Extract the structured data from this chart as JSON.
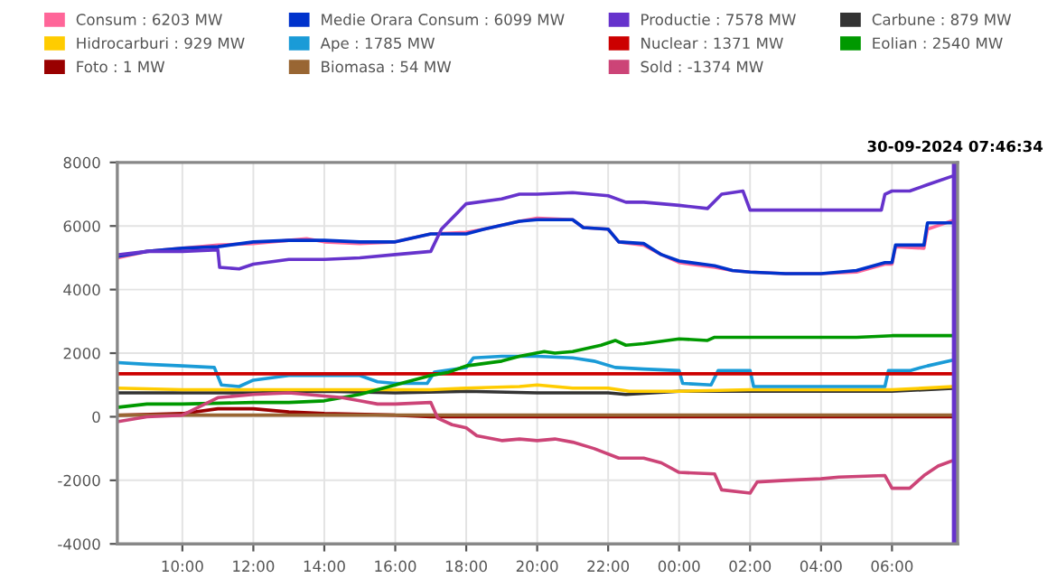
{
  "chart_data": {
    "type": "line",
    "xlim": [
      "2024-09-29T08:10",
      "2024-09-30T07:51"
    ],
    "xticks": [
      {
        "value": "2024-09-29T10:00",
        "label": "10:00"
      },
      {
        "value": "2024-09-29T12:00",
        "label": "12:00"
      },
      {
        "value": "2024-09-29T14:00",
        "label": "14:00"
      },
      {
        "value": "2024-09-29T16:00",
        "label": "16:00"
      },
      {
        "value": "2024-09-29T18:00",
        "label": "18:00"
      },
      {
        "value": "2024-09-29T20:00",
        "label": "20:00"
      },
      {
        "value": "2024-09-29T22:00",
        "label": "22:00"
      },
      {
        "value": "2024-09-30T00:00",
        "label": "00:00"
      },
      {
        "value": "2024-09-30T02:00",
        "label": "02:00"
      },
      {
        "value": "2024-09-30T04:00",
        "label": "04:00"
      },
      {
        "value": "2024-09-30T06:00",
        "label": "06:00"
      }
    ],
    "ylim": [
      -4000,
      8000
    ],
    "yticks": [
      -4000,
      -2000,
      0,
      2000,
      4000,
      6000,
      8000
    ],
    "grid": true,
    "legend": "top",
    "marker": "none",
    "line_style": "solid",
    "ref_lines": [
      {
        "axis": "x",
        "value": "2024-09-30T07:46:34",
        "label": "30-09-2024 07:46:34",
        "color": "#6633cc"
      }
    ],
    "series": [
      {
        "name": "Consum : 6203 MW",
        "color": "#ff6699",
        "x": [
          "2024-09-29T08:12",
          "2024-09-29T09:00",
          "2024-09-29T10:00",
          "2024-09-29T11:00",
          "2024-09-29T12:00",
          "2024-09-29T13:00",
          "2024-09-29T13:30",
          "2024-09-29T14:00",
          "2024-09-29T15:00",
          "2024-09-29T16:00",
          "2024-09-29T17:00",
          "2024-09-29T18:00",
          "2024-09-29T18:30",
          "2024-09-29T19:30",
          "2024-09-29T20:00",
          "2024-09-29T21:00",
          "2024-09-29T21:18",
          "2024-09-29T22:00",
          "2024-09-29T22:18",
          "2024-09-29T23:00",
          "2024-09-29T23:30",
          "2024-09-30T00:00",
          "2024-09-30T01:00",
          "2024-09-30T01:30",
          "2024-09-30T02:00",
          "2024-09-30T03:00",
          "2024-09-30T04:00",
          "2024-09-30T05:00",
          "2024-09-30T05:48",
          "2024-09-30T06:00",
          "2024-09-30T06:06",
          "2024-09-30T06:54",
          "2024-09-30T07:00",
          "2024-09-30T07:47"
        ],
        "values": [
          5000,
          5200,
          5300,
          5400,
          5450,
          5550,
          5600,
          5500,
          5450,
          5500,
          5750,
          5800,
          5900,
          6150,
          6250,
          6200,
          5950,
          5900,
          5500,
          5400,
          5100,
          4850,
          4700,
          4600,
          4550,
          4500,
          4500,
          4550,
          4800,
          4800,
          5350,
          5300,
          5900,
          6200
        ]
      },
      {
        "name": "Medie Orara Consum : 6099 MW",
        "color": "#0033cc",
        "x": [
          "2024-09-29T08:12",
          "2024-09-29T09:00",
          "2024-09-29T10:00",
          "2024-09-29T11:00",
          "2024-09-29T12:00",
          "2024-09-29T13:00",
          "2024-09-29T14:00",
          "2024-09-29T15:00",
          "2024-09-29T16:00",
          "2024-09-29T17:00",
          "2024-09-29T18:00",
          "2024-09-29T18:30",
          "2024-09-29T19:30",
          "2024-09-29T20:00",
          "2024-09-29T21:00",
          "2024-09-29T21:18",
          "2024-09-29T22:00",
          "2024-09-29T22:18",
          "2024-09-29T23:00",
          "2024-09-29T23:30",
          "2024-09-30T00:00",
          "2024-09-30T01:00",
          "2024-09-30T01:30",
          "2024-09-30T02:00",
          "2024-09-30T03:00",
          "2024-09-30T04:00",
          "2024-09-30T05:00",
          "2024-09-30T05:48",
          "2024-09-30T06:00",
          "2024-09-30T06:06",
          "2024-09-30T06:54",
          "2024-09-30T07:00",
          "2024-09-30T07:47"
        ],
        "values": [
          5050,
          5200,
          5300,
          5350,
          5500,
          5550,
          5550,
          5500,
          5500,
          5750,
          5750,
          5900,
          6150,
          6200,
          6200,
          5950,
          5900,
          5500,
          5450,
          5100,
          4900,
          4750,
          4600,
          4550,
          4500,
          4500,
          4600,
          4850,
          4850,
          5400,
          5400,
          6100,
          6100
        ]
      },
      {
        "name": "Productie : 7578 MW",
        "color": "#6633cc",
        "x": [
          "2024-09-29T08:12",
          "2024-09-29T09:00",
          "2024-09-29T10:00",
          "2024-09-29T11:00",
          "2024-09-29T11:03",
          "2024-09-29T11:36",
          "2024-09-29T12:00",
          "2024-09-29T13:00",
          "2024-09-29T14:00",
          "2024-09-29T15:00",
          "2024-09-29T16:00",
          "2024-09-29T17:00",
          "2024-09-29T17:18",
          "2024-09-29T18:00",
          "2024-09-29T19:00",
          "2024-09-29T19:30",
          "2024-09-29T20:00",
          "2024-09-29T21:00",
          "2024-09-29T22:00",
          "2024-09-29T22:30",
          "2024-09-29T23:00",
          "2024-09-30T00:00",
          "2024-09-30T00:48",
          "2024-09-30T01:12",
          "2024-09-30T01:48",
          "2024-09-30T02:00",
          "2024-09-30T03:00",
          "2024-09-30T04:00",
          "2024-09-30T05:00",
          "2024-09-30T05:42",
          "2024-09-30T05:48",
          "2024-09-30T06:00",
          "2024-09-30T06:30",
          "2024-09-30T07:00",
          "2024-09-30T07:47"
        ],
        "values": [
          5100,
          5200,
          5200,
          5250,
          4700,
          4650,
          4800,
          4950,
          4950,
          5000,
          5100,
          5200,
          5900,
          6700,
          6850,
          7000,
          7000,
          7050,
          6950,
          6750,
          6750,
          6650,
          6550,
          7000,
          7100,
          6500,
          6500,
          6500,
          6500,
          6500,
          7000,
          7100,
          7100,
          7300,
          7600
        ]
      },
      {
        "name": "Carbune : 879 MW",
        "color": "#333333",
        "x": [
          "2024-09-29T08:12",
          "2024-09-29T10:00",
          "2024-09-29T12:00",
          "2024-09-29T14:00",
          "2024-09-29T16:00",
          "2024-09-29T18:00",
          "2024-09-29T20:00",
          "2024-09-29T22:00",
          "2024-09-29T22:30",
          "2024-09-30T00:00",
          "2024-09-30T02:00",
          "2024-09-30T04:00",
          "2024-09-30T06:00",
          "2024-09-30T07:47"
        ],
        "values": [
          750,
          750,
          750,
          800,
          750,
          800,
          750,
          750,
          700,
          800,
          800,
          800,
          800,
          900
        ]
      },
      {
        "name": "Hidrocarburi : 929 MW",
        "color": "#ffcc00",
        "x": [
          "2024-09-29T08:12",
          "2024-09-29T10:00",
          "2024-09-29T12:00",
          "2024-09-29T14:00",
          "2024-09-29T16:00",
          "2024-09-29T17:00",
          "2024-09-29T18:00",
          "2024-09-29T19:30",
          "2024-09-29T20:00",
          "2024-09-29T21:00",
          "2024-09-29T22:00",
          "2024-09-29T22:36",
          "2024-09-30T00:00",
          "2024-09-30T02:00",
          "2024-09-30T04:00",
          "2024-09-30T06:00",
          "2024-09-30T07:47"
        ],
        "values": [
          900,
          850,
          850,
          850,
          850,
          850,
          900,
          950,
          1000,
          900,
          900,
          800,
          800,
          850,
          850,
          850,
          950
        ]
      },
      {
        "name": "Ape : 1785 MW",
        "color": "#1a9bd7",
        "x": [
          "2024-09-29T08:12",
          "2024-09-29T09:00",
          "2024-09-29T10:00",
          "2024-09-29T10:54",
          "2024-09-29T11:06",
          "2024-09-29T11:36",
          "2024-09-29T12:00",
          "2024-09-29T13:00",
          "2024-09-29T14:00",
          "2024-09-29T15:00",
          "2024-09-29T15:30",
          "2024-09-29T16:00",
          "2024-09-29T16:54",
          "2024-09-29T17:06",
          "2024-09-29T18:00",
          "2024-09-29T18:12",
          "2024-09-29T19:00",
          "2024-09-29T20:00",
          "2024-09-29T21:00",
          "2024-09-29T21:36",
          "2024-09-29T22:12",
          "2024-09-29T23:00",
          "2024-09-30T00:00",
          "2024-09-30T00:06",
          "2024-09-30T00:54",
          "2024-09-30T01:06",
          "2024-09-30T02:00",
          "2024-09-30T02:06",
          "2024-09-30T03:00",
          "2024-09-30T05:00",
          "2024-09-30T05:48",
          "2024-09-30T05:54",
          "2024-09-30T06:30",
          "2024-09-30T07:00",
          "2024-09-30T07:47"
        ],
        "values": [
          1700,
          1650,
          1600,
          1550,
          1000,
          950,
          1150,
          1300,
          1300,
          1300,
          1100,
          1050,
          1050,
          1400,
          1550,
          1850,
          1900,
          1900,
          1850,
          1750,
          1550,
          1500,
          1450,
          1050,
          1000,
          1450,
          1450,
          950,
          950,
          950,
          950,
          1450,
          1450,
          1600,
          1800
        ]
      },
      {
        "name": "Nuclear : 1371 MW",
        "color": "#cc0000",
        "x": [
          "2024-09-29T08:12",
          "2024-09-30T07:47"
        ],
        "values": [
          1350,
          1350
        ]
      },
      {
        "name": "Eolian : 2540 MW",
        "color": "#009900",
        "x": [
          "2024-09-29T08:12",
          "2024-09-29T09:00",
          "2024-09-29T10:00",
          "2024-09-29T12:00",
          "2024-09-29T13:00",
          "2024-09-29T14:00",
          "2024-09-29T15:00",
          "2024-09-29T16:00",
          "2024-09-29T17:00",
          "2024-09-29T17:30",
          "2024-09-29T18:00",
          "2024-09-29T19:00",
          "2024-09-29T19:30",
          "2024-09-29T20:12",
          "2024-09-29T20:30",
          "2024-09-29T21:00",
          "2024-09-29T21:48",
          "2024-09-29T22:12",
          "2024-09-29T22:30",
          "2024-09-29T23:00",
          "2024-09-30T00:00",
          "2024-09-30T00:48",
          "2024-09-30T01:00",
          "2024-09-30T03:00",
          "2024-09-30T04:00",
          "2024-09-30T05:00",
          "2024-09-30T06:00",
          "2024-09-30T07:47"
        ],
        "values": [
          300,
          400,
          400,
          450,
          450,
          500,
          700,
          1000,
          1300,
          1400,
          1600,
          1750,
          1900,
          2050,
          2000,
          2050,
          2250,
          2400,
          2250,
          2300,
          2450,
          2400,
          2500,
          2500,
          2500,
          2500,
          2550,
          2550
        ]
      },
      {
        "name": "Foto : 1 MW",
        "color": "#990000",
        "x": [
          "2024-09-29T08:12",
          "2024-09-29T10:00",
          "2024-09-29T11:00",
          "2024-09-29T11:30",
          "2024-09-29T12:00",
          "2024-09-29T13:00",
          "2024-09-29T14:00",
          "2024-09-29T16:00",
          "2024-09-29T17:00",
          "2024-09-29T18:00",
          "2024-09-30T07:47"
        ],
        "values": [
          50,
          100,
          250,
          250,
          250,
          150,
          100,
          50,
          0,
          0,
          0
        ]
      },
      {
        "name": "Biomasa : 54 MW",
        "color": "#996633",
        "x": [
          "2024-09-29T08:12",
          "2024-09-30T07:47"
        ],
        "values": [
          50,
          50
        ]
      },
      {
        "name": "Sold : -1374 MW",
        "color": "#cc4477",
        "x": [
          "2024-09-29T08:12",
          "2024-09-29T09:00",
          "2024-09-29T10:00",
          "2024-09-29T11:00",
          "2024-09-29T12:00",
          "2024-09-29T13:00",
          "2024-09-29T14:00",
          "2024-09-29T14:30",
          "2024-09-29T15:00",
          "2024-09-29T15:30",
          "2024-09-29T16:00",
          "2024-09-29T17:00",
          "2024-09-29T17:12",
          "2024-09-29T17:36",
          "2024-09-29T18:00",
          "2024-09-29T18:18",
          "2024-09-29T19:00",
          "2024-09-29T19:30",
          "2024-09-29T20:00",
          "2024-09-29T20:30",
          "2024-09-29T21:00",
          "2024-09-29T21:36",
          "2024-09-29T22:18",
          "2024-09-29T23:00",
          "2024-09-29T23:30",
          "2024-09-30T00:00",
          "2024-09-30T01:00",
          "2024-09-30T01:12",
          "2024-09-30T02:00",
          "2024-09-30T02:12",
          "2024-09-30T03:00",
          "2024-09-30T04:00",
          "2024-09-30T04:30",
          "2024-09-30T05:48",
          "2024-09-30T06:00",
          "2024-09-30T06:30",
          "2024-09-30T06:54",
          "2024-09-30T07:18",
          "2024-09-30T07:47"
        ],
        "values": [
          -150,
          0,
          50,
          600,
          700,
          750,
          650,
          600,
          500,
          400,
          400,
          450,
          -50,
          -250,
          -350,
          -600,
          -750,
          -700,
          -750,
          -700,
          -800,
          -1000,
          -1300,
          -1300,
          -1450,
          -1750,
          -1800,
          -2300,
          -2400,
          -2050,
          -2000,
          -1950,
          -1900,
          -1850,
          -2250,
          -2250,
          -1850,
          -1550,
          -1350
        ]
      }
    ]
  }
}
